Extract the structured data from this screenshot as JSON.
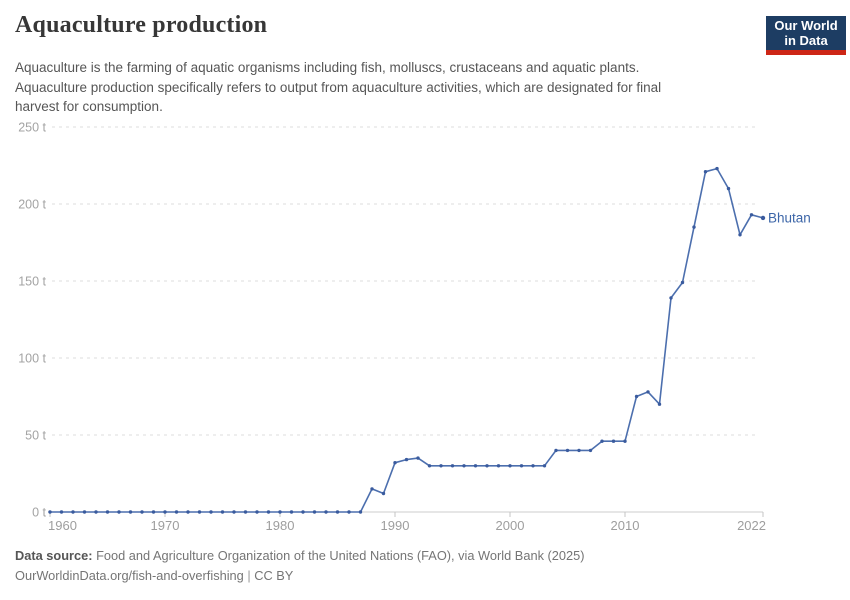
{
  "header": {
    "title": "Aquaculture production",
    "subtitle_lines": [
      "Aquaculture is the farming of aquatic organisms including fish, molluscs, crustaceans and aquatic plants.",
      "Aquaculture production specifically refers to output from aquaculture activities, which are designated for final",
      "harvest for consumption."
    ],
    "logo": {
      "line1": "Our World",
      "line2": "in Data"
    }
  },
  "footer": {
    "source_label": "Data source:",
    "source_text": " Food and Agriculture Organization of the United Nations (FAO), via World Bank (2025)",
    "url": "OurWorldinData.org/fish-and-overfishing",
    "separator": " | ",
    "license": "CC BY"
  },
  "chart_data": {
    "type": "line",
    "title": "Aquaculture production",
    "unit": "t",
    "entity_label": "Bhutan",
    "xlim": [
      1960,
      2022
    ],
    "ylim": [
      0,
      250
    ],
    "grid": "horizontal-dashed",
    "legend_position": "end-of-line-label",
    "xticks": [
      1960,
      1970,
      1980,
      1990,
      2000,
      2010,
      2022
    ],
    "yticks": [
      0,
      50,
      100,
      150,
      200,
      250
    ],
    "ytick_labels": [
      "0 t",
      "50 t",
      "100 t",
      "150 t",
      "200 t",
      "250 t"
    ],
    "x": [
      1960,
      1961,
      1962,
      1963,
      1964,
      1965,
      1966,
      1967,
      1968,
      1969,
      1970,
      1971,
      1972,
      1973,
      1974,
      1975,
      1976,
      1977,
      1978,
      1979,
      1980,
      1981,
      1982,
      1983,
      1984,
      1985,
      1986,
      1987,
      1988,
      1989,
      1990,
      1991,
      1992,
      1993,
      1994,
      1995,
      1996,
      1997,
      1998,
      1999,
      2000,
      2001,
      2002,
      2003,
      2004,
      2005,
      2006,
      2007,
      2008,
      2009,
      2010,
      2011,
      2012,
      2013,
      2014,
      2015,
      2016,
      2017,
      2018,
      2019,
      2020,
      2021,
      2022
    ],
    "series": [
      {
        "name": "Bhutan",
        "values": [
          0,
          0,
          0,
          0,
          0,
          0,
          0,
          0,
          0,
          0,
          0,
          0,
          0,
          0,
          0,
          0,
          0,
          0,
          0,
          0,
          0,
          0,
          0,
          0,
          0,
          0,
          0,
          0,
          15,
          12,
          32,
          34,
          35,
          30,
          30,
          30,
          30,
          30,
          30,
          30,
          30,
          30,
          30,
          30,
          40,
          40,
          40,
          40,
          46,
          46,
          46,
          75,
          78,
          70,
          139,
          149,
          185,
          221,
          223,
          210,
          180,
          193,
          191
        ]
      }
    ],
    "colors": {
      "line": "#4c6fae",
      "dot": "#3a5b9e",
      "entity_label": "#3d66a8",
      "gridline": "#dedede",
      "axis": "#cccccc",
      "tick_label": "#9e9e9e"
    }
  }
}
